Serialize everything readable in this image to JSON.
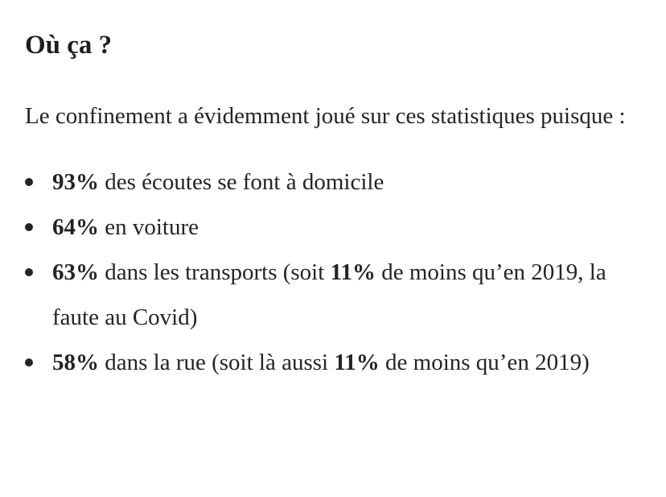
{
  "article": {
    "heading": "Où ça ?",
    "intro": "Le confinement a évidemment joué sur ces statistiques puisque :",
    "stats": [
      {
        "value": "93%",
        "text": " des écoutes se font à domicile"
      },
      {
        "value": "64%",
        "text": " en voiture"
      },
      {
        "value": "63%",
        "text": " dans les transports (soit ",
        "diff": "11%",
        "tail": " de moins qu’en 2019, la faute au Covid)"
      },
      {
        "value": "58%",
        "text": " dans la rue (soit là aussi ",
        "diff": "11%",
        "tail": " de moins qu’en 2019)"
      }
    ]
  }
}
